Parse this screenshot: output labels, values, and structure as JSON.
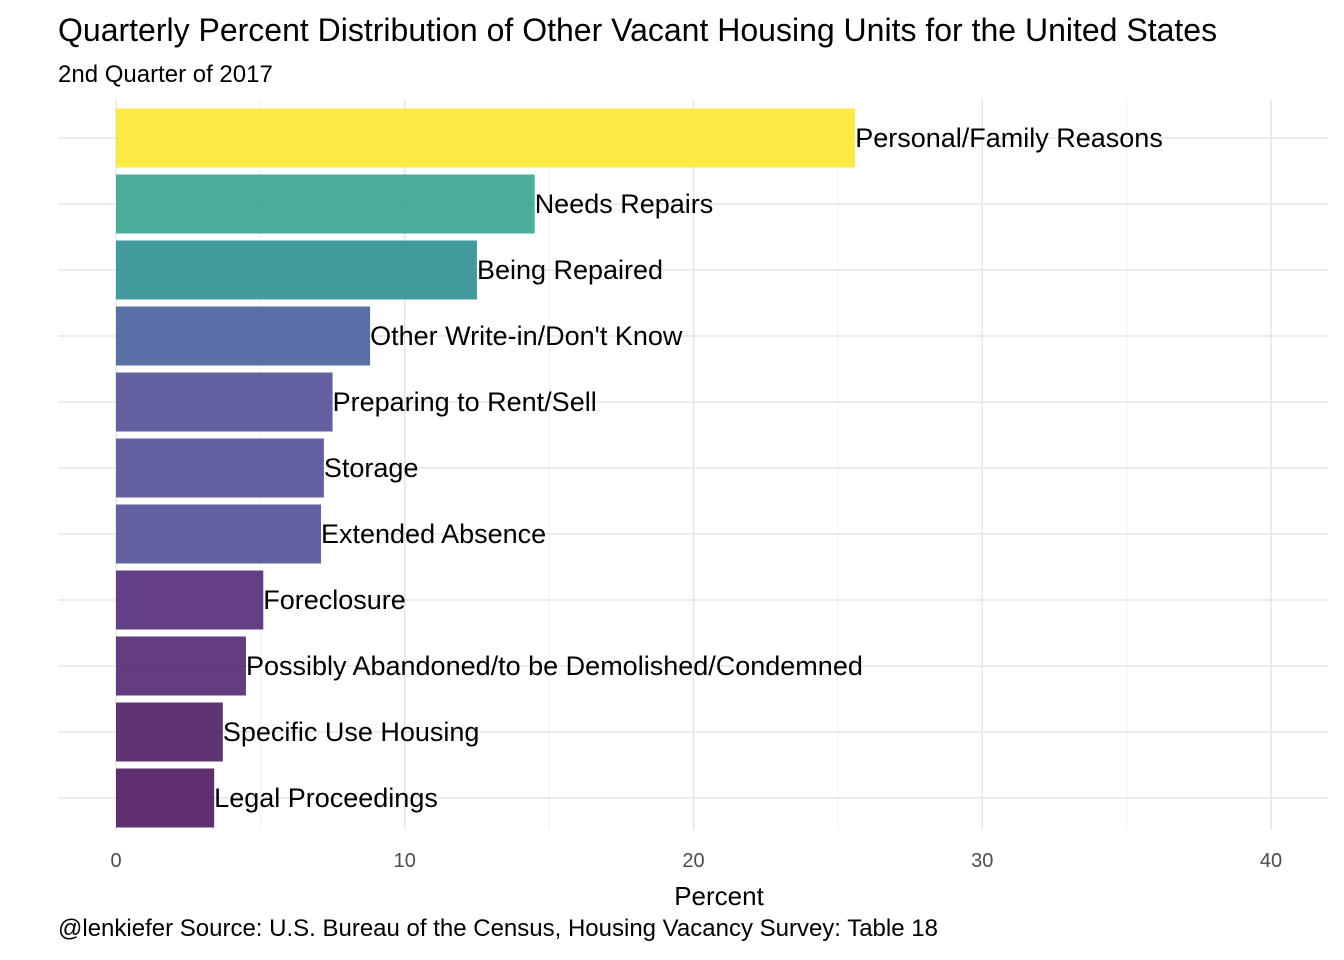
{
  "chart_data": {
    "type": "bar",
    "orientation": "horizontal",
    "title": "Quarterly Percent Distribution of Other Vacant Housing Units for the United States",
    "subtitle": "2nd Quarter of 2017",
    "caption": "@lenkiefer Source: U.S. Bureau of the Census, Housing Vacancy Survey: Table 18",
    "xlabel": "Percent",
    "ylabel": "",
    "xlim": [
      0,
      40
    ],
    "x_ticks": [
      0,
      10,
      20,
      30,
      40
    ],
    "grid": true,
    "legend": "none",
    "categories": [
      "Personal/Family Reasons",
      "Needs Repairs",
      "Being Repaired",
      "Other Write-in/Don't Know",
      "Preparing to Rent/Sell",
      "Storage",
      "Extended Absence",
      "Foreclosure",
      "Possibly Abandoned/to be Demolished/Condemned",
      "Specific Use Housing",
      "Legal Proceedings"
    ],
    "values": [
      25.6,
      14.5,
      12.5,
      8.8,
      7.5,
      7.2,
      7.1,
      5.1,
      4.5,
      3.7,
      3.4
    ],
    "colors": [
      "#fde725",
      "#2ca089",
      "#238a8d",
      "#3d5696",
      "#46468f",
      "#474590",
      "#474590",
      "#481f70",
      "#481a6c",
      "#440f5b",
      "#440a56"
    ]
  }
}
